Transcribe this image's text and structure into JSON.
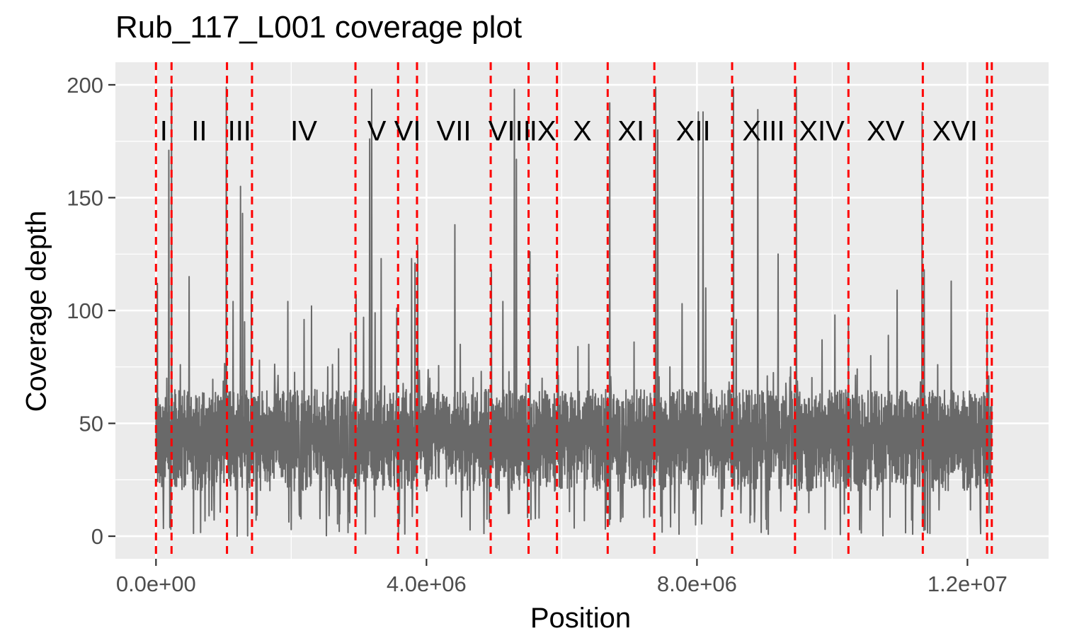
{
  "chart_data": {
    "type": "line",
    "title": "Rub_117_L001 coverage plot",
    "xlabel": "Position",
    "ylabel": "Coverage depth",
    "xlim": [
      -600000,
      13200000
    ],
    "ylim": [
      -10,
      210
    ],
    "x_ticks": [
      0,
      4000000,
      8000000,
      12000000
    ],
    "x_tick_labels": [
      "0.0e+00",
      "4.0e+06",
      "8.0e+06",
      "1.2e+07"
    ],
    "y_ticks": [
      0,
      50,
      100,
      150,
      200
    ],
    "y_tick_labels": [
      "0",
      "50",
      "100",
      "150",
      "200"
    ],
    "grid": true,
    "line_color": "#696969",
    "boundary_color": "#ff0000",
    "background_color": "#ebebeb",
    "chromosome_boundaries": [
      0,
      230000,
      1050000,
      1420000,
      2950000,
      3580000,
      3860000,
      4950000,
      5510000,
      5930000,
      6680000,
      7370000,
      8520000,
      9450000,
      10240000,
      11340000,
      12290000,
      12360000
    ],
    "chromosomes": [
      {
        "label": "I",
        "x": 115000
      },
      {
        "label": "II",
        "x": 640000
      },
      {
        "label": "III",
        "x": 1235000
      },
      {
        "label": "IV",
        "x": 2185000
      },
      {
        "label": "V",
        "x": 3265000
      },
      {
        "label": "VI",
        "x": 3720000
      },
      {
        "label": "VII",
        "x": 4405000
      },
      {
        "label": "VIII",
        "x": 5230000
      },
      {
        "label": "IX",
        "x": 5720000
      },
      {
        "label": "X",
        "x": 6305000
      },
      {
        "label": "XI",
        "x": 7025000
      },
      {
        "label": "XII",
        "x": 7945000
      },
      {
        "label": "XIII",
        "x": 8985000
      },
      {
        "label": "XIV",
        "x": 9845000
      },
      {
        "label": "XV",
        "x": 10790000
      },
      {
        "label": "XVI",
        "x": 11815000
      }
    ],
    "chromosome_label_y": 180,
    "baseline_band": [
      20,
      65
    ],
    "peaks": [
      {
        "x": 20000,
        "y": 112
      },
      {
        "x": 160000,
        "y": 70
      },
      {
        "x": 190000,
        "y": 171
      },
      {
        "x": 230000,
        "y": 199
      },
      {
        "x": 360000,
        "y": 76
      },
      {
        "x": 490000,
        "y": 115
      },
      {
        "x": 1040000,
        "y": 199
      },
      {
        "x": 1140000,
        "y": 104
      },
      {
        "x": 1250000,
        "y": 155
      },
      {
        "x": 1280000,
        "y": 143
      },
      {
        "x": 1310000,
        "y": 95
      },
      {
        "x": 1410000,
        "y": 108
      },
      {
        "x": 1530000,
        "y": 78
      },
      {
        "x": 1950000,
        "y": 104
      },
      {
        "x": 2190000,
        "y": 96
      },
      {
        "x": 2300000,
        "y": 102
      },
      {
        "x": 2540000,
        "y": 75
      },
      {
        "x": 2700000,
        "y": 83
      },
      {
        "x": 2880000,
        "y": 90
      },
      {
        "x": 2960000,
        "y": 107
      },
      {
        "x": 3070000,
        "y": 97
      },
      {
        "x": 3160000,
        "y": 176
      },
      {
        "x": 3190000,
        "y": 198
      },
      {
        "x": 3240000,
        "y": 99
      },
      {
        "x": 3330000,
        "y": 123
      },
      {
        "x": 3560000,
        "y": 101
      },
      {
        "x": 3780000,
        "y": 123
      },
      {
        "x": 3830000,
        "y": 121
      },
      {
        "x": 3870000,
        "y": 129
      },
      {
        "x": 4050000,
        "y": 70
      },
      {
        "x": 4420000,
        "y": 138
      },
      {
        "x": 4500000,
        "y": 85
      },
      {
        "x": 4810000,
        "y": 73
      },
      {
        "x": 4960000,
        "y": 118
      },
      {
        "x": 5130000,
        "y": 104
      },
      {
        "x": 5300000,
        "y": 198
      },
      {
        "x": 5330000,
        "y": 167
      },
      {
        "x": 5530000,
        "y": 126
      },
      {
        "x": 5710000,
        "y": 70
      },
      {
        "x": 5940000,
        "y": 116
      },
      {
        "x": 6240000,
        "y": 84
      },
      {
        "x": 6400000,
        "y": 85
      },
      {
        "x": 6710000,
        "y": 192
      },
      {
        "x": 7070000,
        "y": 86
      },
      {
        "x": 7390000,
        "y": 199
      },
      {
        "x": 7420000,
        "y": 180
      },
      {
        "x": 7600000,
        "y": 75
      },
      {
        "x": 7780000,
        "y": 103
      },
      {
        "x": 8020000,
        "y": 188
      },
      {
        "x": 8090000,
        "y": 188
      },
      {
        "x": 8130000,
        "y": 110
      },
      {
        "x": 8540000,
        "y": 199
      },
      {
        "x": 8580000,
        "y": 96
      },
      {
        "x": 8900000,
        "y": 189
      },
      {
        "x": 9040000,
        "y": 71
      },
      {
        "x": 9200000,
        "y": 125
      },
      {
        "x": 9470000,
        "y": 199
      },
      {
        "x": 9850000,
        "y": 87
      },
      {
        "x": 10040000,
        "y": 98
      },
      {
        "x": 10240000,
        "y": 97
      },
      {
        "x": 10570000,
        "y": 80
      },
      {
        "x": 10830000,
        "y": 89
      },
      {
        "x": 10960000,
        "y": 109
      },
      {
        "x": 11330000,
        "y": 188
      },
      {
        "x": 11360000,
        "y": 118
      },
      {
        "x": 11560000,
        "y": 76
      },
      {
        "x": 11760000,
        "y": 113
      },
      {
        "x": 12290000,
        "y": 99
      }
    ]
  }
}
